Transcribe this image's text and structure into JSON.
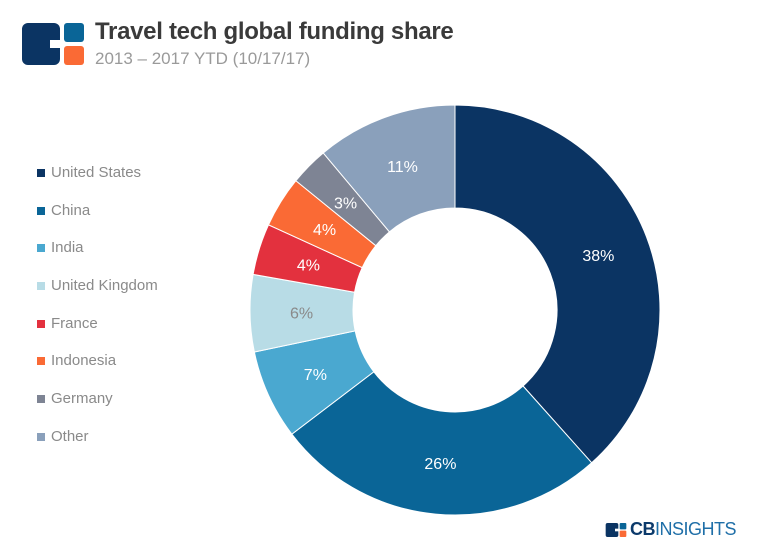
{
  "header": {
    "title": "Travel tech global funding share",
    "subtitle": "2013 – 2017 YTD (10/17/17)"
  },
  "brand": {
    "cb": "CB",
    "insights": "INSIGHTS"
  },
  "chart_data": {
    "type": "pie",
    "variant": "donut",
    "title": "Travel tech global funding share",
    "subtitle": "2013 – 2017 YTD (10/17/17)",
    "legend_position": "left",
    "categories": [
      "United States",
      "China",
      "India",
      "United Kingdom",
      "France",
      "Indonesia",
      "Germany",
      "Other"
    ],
    "values": [
      38,
      26,
      7,
      6,
      4,
      4,
      3,
      11
    ],
    "labels": [
      "38%",
      "26%",
      "7%",
      "6%",
      "4%",
      "4%",
      "3%",
      "11%"
    ],
    "colors": [
      "#0b3463",
      "#0a6597",
      "#4aa8d0",
      "#b8dce6",
      "#e3313e",
      "#fa6a35",
      "#7e8494",
      "#8aa0bb"
    ],
    "label_colors": [
      "#ffffff",
      "#ffffff",
      "#ffffff",
      "#8a8a8a",
      "#ffffff",
      "#ffffff",
      "#ffffff",
      "#ffffff"
    ]
  }
}
